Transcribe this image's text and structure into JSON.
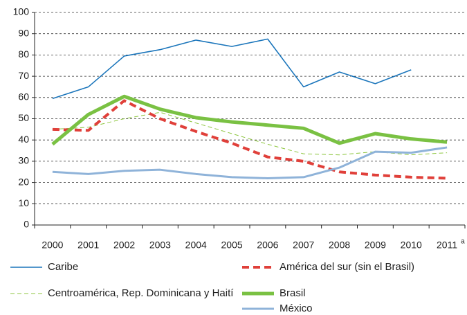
{
  "chart_data": {
    "type": "line",
    "categories": [
      "2000",
      "2001",
      "2002",
      "2003",
      "2004",
      "2005",
      "2006",
      "2007",
      "2008",
      "2009",
      "2010",
      "2011"
    ],
    "category_note": "a",
    "series": [
      {
        "name": "Caribe",
        "color": "#1a75bb",
        "width": 1.6,
        "dash": null,
        "values": [
          59.5,
          65,
          79.5,
          82.5,
          87,
          84,
          87.5,
          65,
          72,
          66.5,
          73,
          null
        ]
      },
      {
        "name": "Centroamérica, Rep. Dominicana y Haití",
        "color": "#8dc63f",
        "width": 1,
        "dash": "6 4",
        "values": [
          45,
          46,
          50,
          53,
          48,
          43,
          38,
          33.5,
          33,
          34.5,
          33,
          34
        ]
      },
      {
        "name": "América del sur (sin el Brasil)",
        "color": "#e0403a",
        "width": 4,
        "dash": "10 6",
        "values": [
          45,
          44.5,
          58.5,
          50,
          44,
          38.5,
          32,
          30,
          25,
          23.5,
          22.5,
          22
        ]
      },
      {
        "name": "Brasil",
        "color": "#7ac143",
        "width": 5,
        "dash": null,
        "values": [
          38,
          52,
          60.5,
          54.5,
          50.5,
          48.5,
          47,
          45.5,
          38.5,
          43,
          40.5,
          39
        ]
      },
      {
        "name": "México",
        "color": "#8fb3d9",
        "width": 3,
        "dash": null,
        "values": [
          25,
          24,
          25.5,
          26,
          24,
          22.5,
          22,
          22.5,
          27,
          34.5,
          34,
          36.5
        ]
      }
    ],
    "ylim": [
      0,
      100
    ],
    "yticks": [
      0,
      10,
      20,
      30,
      40,
      50,
      60,
      70,
      80,
      90,
      100
    ],
    "grid": true
  }
}
